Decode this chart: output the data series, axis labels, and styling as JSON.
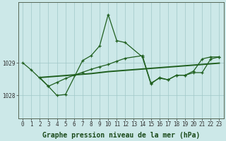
{
  "title": "Graphe pression niveau de la mer (hPa)",
  "bg_color": "#cce8e8",
  "line_color": "#1f5f1f",
  "grid_color": "#a0c8c8",
  "xlim": [
    -0.5,
    23.5
  ],
  "ylim": [
    1027.3,
    1030.85
  ],
  "yticks": [
    1028,
    1029
  ],
  "xticks": [
    0,
    1,
    2,
    3,
    4,
    5,
    6,
    7,
    8,
    9,
    10,
    11,
    12,
    13,
    14,
    15,
    16,
    17,
    18,
    19,
    20,
    21,
    22,
    23
  ],
  "main_x": [
    0,
    1,
    3,
    4,
    5,
    7,
    8,
    9,
    10,
    11,
    12,
    14,
    15,
    16,
    17,
    18,
    19,
    20,
    21,
    22,
    23
  ],
  "main_y": [
    1029.0,
    1028.78,
    1028.28,
    1028.0,
    1028.03,
    1029.07,
    1029.22,
    1029.52,
    1030.48,
    1029.68,
    1029.62,
    1029.18,
    1028.35,
    1028.55,
    1028.48,
    1028.62,
    1028.62,
    1028.75,
    1029.12,
    1029.18,
    1029.18
  ],
  "trend_x": [
    2,
    3,
    4,
    5,
    6,
    7,
    8,
    9,
    10,
    11,
    12,
    13,
    14,
    15,
    16,
    17,
    18,
    19,
    20,
    21,
    22,
    23
  ],
  "trend_y": [
    1028.55,
    1028.57,
    1028.59,
    1028.61,
    1028.63,
    1028.65,
    1028.67,
    1028.7,
    1028.73,
    1028.75,
    1028.77,
    1028.79,
    1028.81,
    1028.83,
    1028.85,
    1028.87,
    1028.89,
    1028.91,
    1028.93,
    1028.95,
    1028.97,
    1028.99
  ],
  "lower_x": [
    2,
    3,
    4,
    5,
    6,
    7,
    8,
    9,
    10,
    11,
    12,
    14,
    15,
    16,
    17,
    18,
    19,
    20,
    21,
    22,
    23
  ],
  "lower_y": [
    1028.55,
    1028.28,
    1028.4,
    1028.52,
    1028.62,
    1028.71,
    1028.8,
    1028.88,
    1028.95,
    1029.05,
    1029.14,
    1029.22,
    1028.38,
    1028.53,
    1028.48,
    1028.62,
    1028.62,
    1028.7,
    1028.7,
    1029.12,
    1029.18
  ],
  "title_fontsize": 7,
  "tick_fontsize": 5.5,
  "lw_main": 0.9,
  "lw_trend": 1.4
}
